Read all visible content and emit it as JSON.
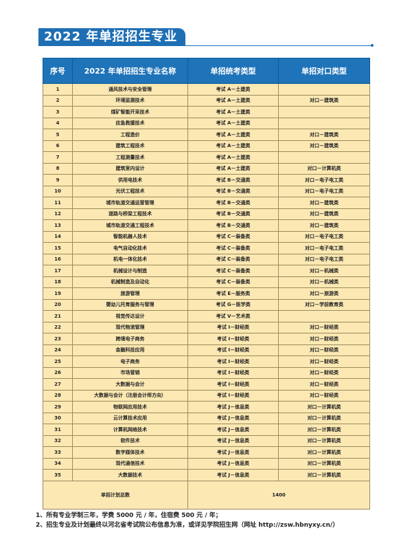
{
  "title": "2022 年单招招生专业",
  "table": {
    "headers": [
      "序号",
      "2022 年单招招生专业名称",
      "单招统考类型",
      "单招对口类型"
    ],
    "rows": [
      [
        "1",
        "通风技术与安全管理",
        "考试 A－土建类",
        ""
      ],
      [
        "2",
        "环境监测技术",
        "考试 A－土建类",
        "对口－建筑类"
      ],
      [
        "3",
        "煤矿智能开采技术",
        "考试 A－土建类",
        ""
      ],
      [
        "4",
        "应急救援技术",
        "考试 A－土建类",
        ""
      ],
      [
        "5",
        "工程造价",
        "考试 A－土建类",
        "对口－建筑类"
      ],
      [
        "6",
        "建筑工程技术",
        "考试 A－土建类",
        "对口－建筑类"
      ],
      [
        "7",
        "工程测量技术",
        "考试 A－土建类",
        ""
      ],
      [
        "8",
        "建筑室内设计",
        "考试 A－土建类",
        "对口－计算机类"
      ],
      [
        "9",
        "供用电技术",
        "考试 B－交通类",
        "对口－电子电工类"
      ],
      [
        "10",
        "光伏工程技术",
        "考试 B－交通类",
        "对口－电子电工类"
      ],
      [
        "11",
        "城市轨道交通运营管理",
        "考试 B－交通类",
        "对口－建筑类"
      ],
      [
        "12",
        "道路与桥梁工程技术",
        "考试 B－交通类",
        "对口－建筑类"
      ],
      [
        "13",
        "城市轨道交通工程技术",
        "考试 B－交通类",
        "对口－建筑类"
      ],
      [
        "14",
        "智能机器人技术",
        "考试 C－装备类",
        "对口－电子电工类"
      ],
      [
        "15",
        "电气自动化技术",
        "考试 C－装备类",
        "对口－电子电工类"
      ],
      [
        "16",
        "机电一体化技术",
        "考试 C－装备类",
        "对口－电子电工类"
      ],
      [
        "17",
        "机械设计与制造",
        "考试 C－装备类",
        "对口－机械类"
      ],
      [
        "18",
        "机械制造及自动化",
        "考试 C－装备类",
        "对口－机械类"
      ],
      [
        "19",
        "旅游管理",
        "考试 E－服务类",
        "对口－旅游类"
      ],
      [
        "20",
        "婴幼儿托育服务与管理",
        "考试 G－医学类",
        "对口－学前教育类"
      ],
      [
        "21",
        "视觉传达设计",
        "考试 V－艺术类",
        ""
      ],
      [
        "22",
        "现代物流管理",
        "考试 I－财经类",
        "对口－财经类"
      ],
      [
        "23",
        "跨境电子商务",
        "考试 I－财经类",
        "对口－财经类"
      ],
      [
        "24",
        "金融科技应用",
        "考试 I－财经类",
        "对口－财经类"
      ],
      [
        "25",
        "电子商务",
        "考试 I－财经类",
        "对口－财经类"
      ],
      [
        "26",
        "市场营销",
        "考试 I－财经类",
        "对口－财经类"
      ],
      [
        "27",
        "大数据与会计",
        "考试 I－财经类",
        "对口－财经类"
      ],
      [
        "28",
        "大数据与会计（注册会计师方向）",
        "考试 I－财经类",
        "对口－财经类"
      ],
      [
        "29",
        "物联网应用技术",
        "考试 J－信息类",
        "对口－计算机类"
      ],
      [
        "30",
        "云计算技术应用",
        "考试 J－信息类",
        "对口－计算机类"
      ],
      [
        "31",
        "计算机网络技术",
        "考试 J－信息类",
        "对口－计算机类"
      ],
      [
        "32",
        "软件技术",
        "考试 J－信息类",
        "对口－计算机类"
      ],
      [
        "33",
        "数字媒体技术",
        "考试 J－信息类",
        "对口－计算机类"
      ],
      [
        "34",
        "现代通信技术",
        "考试 J－信息类",
        "对口－计算机类"
      ],
      [
        "35",
        "大数据技术",
        "考试 J－信息类",
        "对口－计算机类"
      ]
    ],
    "total_label": "单招计划总数",
    "total_value": "1400"
  },
  "notes": [
    "1、所有专业学制三年，学费 5000 元 / 年，住宿费 500 元 / 年；",
    "2、招生专业及计划最终以河北省考试院公布信息为准，或详见学院招生网（网址 http://zsw.hbnyxy.cn/）"
  ]
}
